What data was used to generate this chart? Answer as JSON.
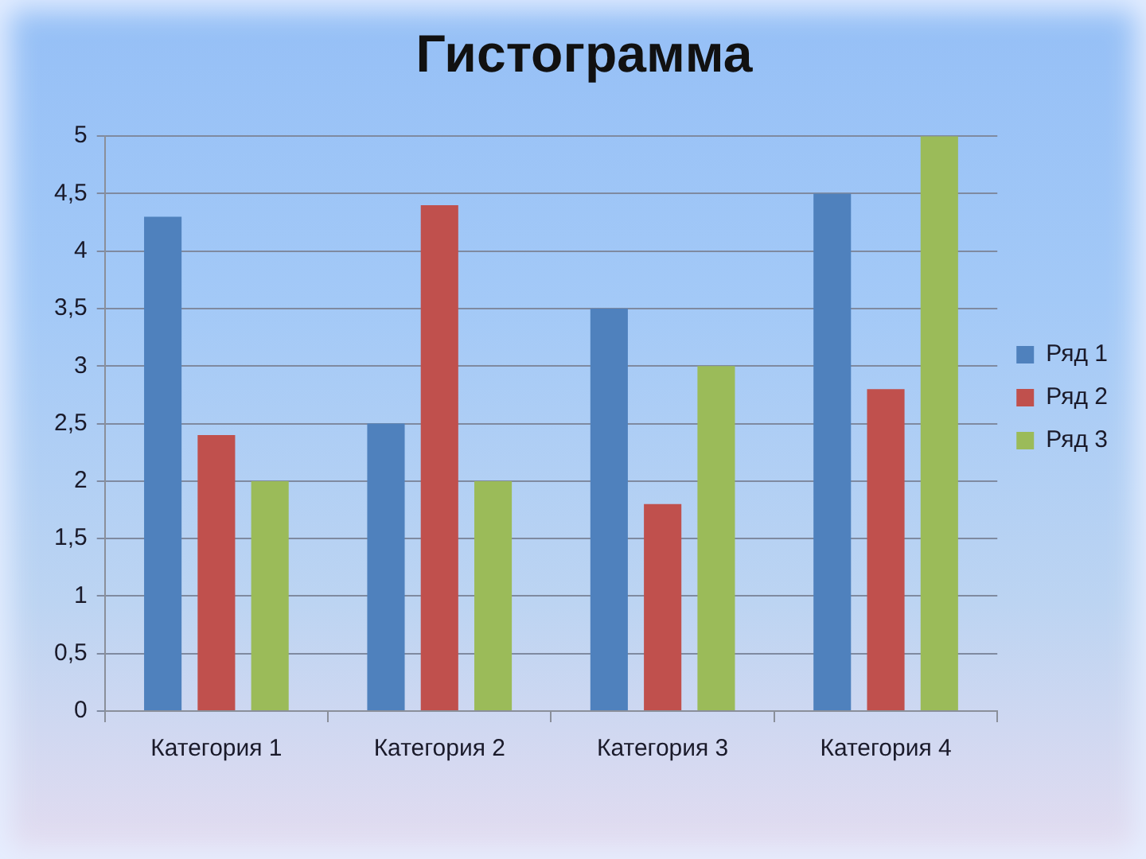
{
  "chart_data": {
    "type": "bar",
    "title": "Гистограмма",
    "categories": [
      "Категория 1",
      "Категория 2",
      "Категория 3",
      "Категория 4"
    ],
    "series": [
      {
        "name": "Ряд 1",
        "color": "#4f81bd",
        "values": [
          4.3,
          2.5,
          3.5,
          4.5
        ]
      },
      {
        "name": "Ряд 2",
        "color": "#c0504d",
        "values": [
          2.4,
          4.4,
          1.8,
          2.8
        ]
      },
      {
        "name": "Ряд 3",
        "color": "#9bbb59",
        "values": [
          2,
          2,
          3,
          5
        ]
      }
    ],
    "ylim": [
      0,
      5
    ],
    "yticks": [
      0,
      {
        "value": 0.5,
        "label": "0,5"
      },
      1,
      {
        "value": 1.5,
        "label": "1,5"
      },
      2,
      {
        "value": 2.5,
        "label": "2,5"
      },
      3,
      {
        "value": 3.5,
        "label": "3,5"
      },
      4,
      {
        "value": 4.5,
        "label": "4,5"
      },
      5
    ],
    "grid": "y",
    "legend": "right"
  }
}
